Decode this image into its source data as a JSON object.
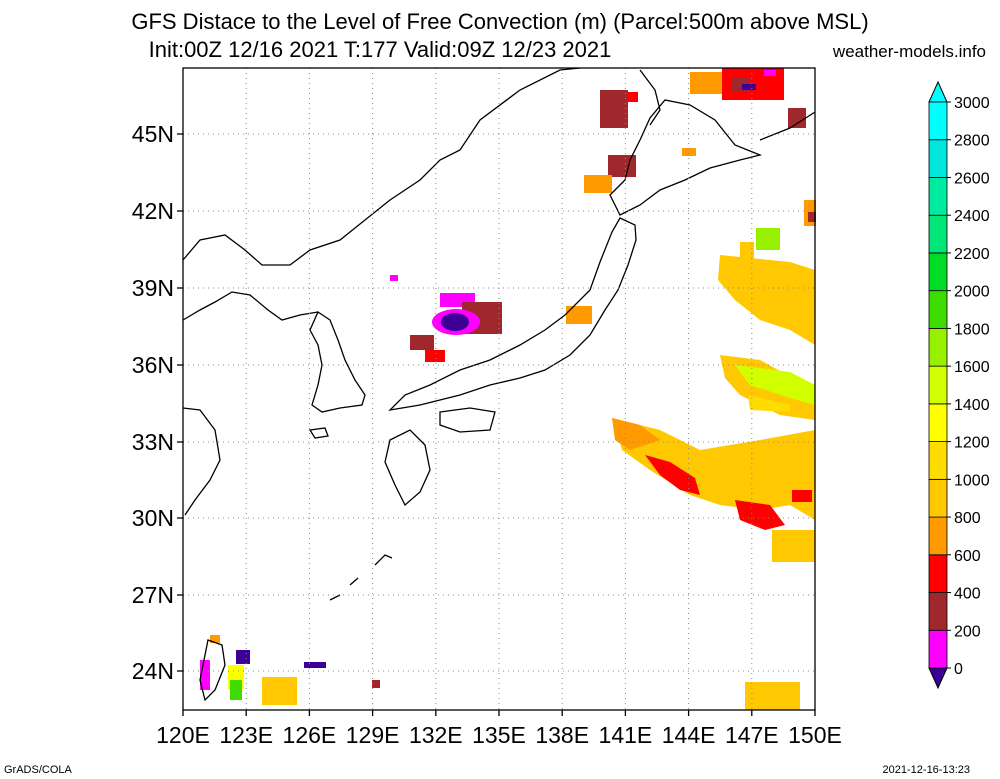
{
  "header": {
    "title_line1": "GFS Distace to the Level of Free Convection (m) (Parcel:500m above MSL)",
    "title_line2": "Init:00Z 12/16 2021 T:177 Valid:09Z 12/23 2021",
    "site": "weather-models.info"
  },
  "map": {
    "lon_labels": [
      "120E",
      "123E",
      "126E",
      "129E",
      "132E",
      "135E",
      "138E",
      "141E",
      "144E",
      "147E",
      "150E"
    ],
    "lat_labels": [
      "45N",
      "42N",
      "39N",
      "36N",
      "33N",
      "30N",
      "27N",
      "24N"
    ],
    "grid": "dotted"
  },
  "colorbar": {
    "labels": [
      "0",
      "200",
      "400",
      "600",
      "800",
      "1000",
      "1200",
      "1400",
      "1600",
      "1800",
      "2000",
      "2200",
      "2400",
      "2600",
      "2800",
      "3000"
    ],
    "colors": [
      "#3c0096",
      "#ff00ff",
      "#a0282d",
      "#ff0000",
      "#ff9b00",
      "#ffc800",
      "#ffdc00",
      "#ffff00",
      "#d2ff00",
      "#96f000",
      "#3cdc00",
      "#00dc28",
      "#00e678",
      "#00eba0",
      "#00e6dc",
      "#00ffff"
    ]
  },
  "footer": {
    "left": "GrADS/COLA",
    "right": "2021-12-16-13:23"
  }
}
